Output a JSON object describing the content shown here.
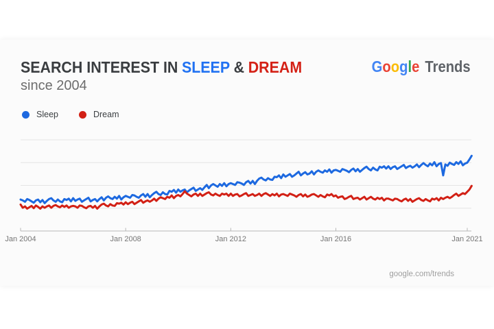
{
  "header": {
    "title_prefix": "SEARCH INTEREST IN",
    "keyword1": "SLEEP",
    "ampersand": "&",
    "keyword2": "DREAM",
    "subtitle": "since 2004",
    "title_color": "#3a3d40",
    "keyword1_color": "#2172f2",
    "keyword2_color": "#d42116"
  },
  "brand": {
    "letters": [
      {
        "ch": "G",
        "color": "#4285F4"
      },
      {
        "ch": "o",
        "color": "#EA4335"
      },
      {
        "ch": "o",
        "color": "#FBBC05"
      },
      {
        "ch": "g",
        "color": "#4285F4"
      },
      {
        "ch": "l",
        "color": "#34A853"
      },
      {
        "ch": "e",
        "color": "#EA4335"
      }
    ],
    "suffix": "Trends",
    "suffix_color": "#5f6368"
  },
  "legend": [
    {
      "label": "Sleep",
      "color": "#1d69e0"
    },
    {
      "label": "Dream",
      "color": "#d22015"
    }
  ],
  "footer": {
    "text": "google.com/trends"
  },
  "chart_data": {
    "type": "line",
    "title": "Search interest in Sleep & Dream since 2004",
    "xlabel": "",
    "ylabel": "",
    "ylim": [
      0,
      100
    ],
    "grid": true,
    "gridline_values": [
      25,
      50,
      75,
      100
    ],
    "legend_position": "top-left",
    "x_unit": "months since Jan 2004",
    "x_step_months": 1,
    "x_tick_labels": [
      "Jan 2004",
      "Jan 2008",
      "Jan 2012",
      "Jan 2016",
      "Jan 2021"
    ],
    "x_tick_months": [
      0,
      48,
      96,
      144,
      204
    ],
    "series": [
      {
        "name": "Sleep",
        "color": "#1d69e0",
        "values": [
          34.5,
          33.5,
          32,
          35,
          34,
          32.5,
          31,
          33.5,
          34.5,
          31.5,
          34,
          30.5,
          33,
          35,
          36,
          33.5,
          32,
          34.5,
          32.5,
          31.5,
          35,
          34,
          35.5,
          32.5,
          36,
          33,
          34.5,
          35.5,
          32,
          33.5,
          35,
          36.5,
          32.5,
          34,
          35,
          32.5,
          35,
          37,
          33.5,
          36.5,
          38,
          36,
          35,
          37.5,
          35.5,
          38.5,
          34.5,
          37,
          38.5,
          37.5,
          36.5,
          39.5,
          39,
          37.5,
          36.5,
          39,
          40.5,
          37.5,
          40.5,
          37,
          39.5,
          41.5,
          43,
          40.5,
          39.5,
          42.5,
          40.5,
          40,
          44,
          43,
          45,
          42,
          45.5,
          43,
          44.5,
          45.5,
          42.5,
          44.5,
          46,
          47.5,
          44,
          45.5,
          47,
          45,
          48,
          50.5,
          47,
          50,
          51.5,
          50,
          48.5,
          51.5,
          49.5,
          52.5,
          49,
          51.5,
          52.5,
          51.5,
          50.5,
          53.5,
          53,
          52,
          50.5,
          53.5,
          55,
          52,
          55,
          51.5,
          55,
          57.5,
          58.5,
          56.5,
          55.5,
          58,
          56.5,
          56,
          59.5,
          59,
          61,
          58,
          62,
          59.5,
          61,
          62.5,
          59.5,
          61,
          63,
          65,
          61,
          63,
          64.5,
          62,
          63,
          65.5,
          62,
          65,
          66.5,
          65,
          64,
          66.5,
          65,
          67.5,
          64,
          66.5,
          67,
          66,
          65,
          68,
          67,
          66,
          64.5,
          67,
          68.5,
          65.5,
          68,
          65,
          67,
          69,
          70.5,
          68,
          66.5,
          69.5,
          67.5,
          66.5,
          70.5,
          69.5,
          71,
          68.5,
          71,
          68,
          70,
          71,
          68,
          69.5,
          71,
          72.5,
          69,
          70.5,
          71.5,
          69.5,
          71,
          73,
          70,
          72.5,
          74.5,
          72.5,
          71,
          74,
          72,
          75.5,
          71,
          73.5,
          74.5,
          61,
          73,
          71.5,
          75,
          73.5,
          72.5,
          75.5,
          73.5,
          76.5,
          72,
          74,
          75,
          78.5,
          82.5
        ]
      },
      {
        "name": "Dream",
        "color": "#d22015",
        "values": [
          29,
          25.5,
          27,
          24.5,
          26,
          27.5,
          25,
          28,
          26.5,
          24.5,
          27,
          25.5,
          27,
          28,
          25.5,
          27.5,
          28.5,
          27,
          26,
          28,
          26.5,
          28,
          25.5,
          27,
          27.5,
          27,
          25.5,
          28,
          27.5,
          26,
          25,
          27,
          27.5,
          25.5,
          27.5,
          24.5,
          27,
          29,
          30,
          28,
          27,
          29.5,
          28,
          27.5,
          30.5,
          30,
          31,
          29,
          31.5,
          29.5,
          31,
          32,
          29.5,
          31,
          32.5,
          34,
          31,
          32.5,
          33.5,
          32,
          33.5,
          35.5,
          33,
          35.5,
          37,
          36,
          35,
          37.5,
          36.5,
          39,
          36,
          38.5,
          39.5,
          38,
          40.5,
          43.5,
          41,
          39.5,
          38,
          40,
          41,
          38.5,
          41,
          38.5,
          40,
          41.5,
          42.5,
          40,
          39,
          41,
          39.5,
          38.5,
          41,
          40,
          41,
          38.5,
          41,
          38.5,
          40,
          40.5,
          38,
          39,
          40.5,
          41.5,
          38.5,
          39.5,
          40.5,
          38.5,
          39.5,
          41,
          38.5,
          40.5,
          41.5,
          40,
          38.5,
          40.5,
          39,
          41,
          38,
          40,
          40.5,
          39.5,
          38.5,
          41,
          40,
          39,
          37.5,
          39.5,
          40.5,
          38,
          40,
          37.5,
          38.5,
          40,
          40.5,
          39,
          37.5,
          39.5,
          38,
          37,
          40,
          39,
          40.5,
          38,
          39,
          36.5,
          37.5,
          38,
          35,
          36,
          37.5,
          38.5,
          35,
          36,
          36.5,
          34.5,
          36,
          37.5,
          34.5,
          36,
          37.5,
          35.5,
          34.5,
          36.5,
          35,
          36.5,
          33.5,
          35.5,
          35.5,
          34.5,
          33.5,
          35.5,
          35,
          33.5,
          32.5,
          34.5,
          35.5,
          33,
          35,
          32,
          33.5,
          35,
          36,
          34,
          33,
          35,
          33.5,
          32.5,
          35.5,
          34.5,
          36,
          33.5,
          36.5,
          35,
          36.5,
          37.5,
          36,
          37.5,
          39.5,
          41,
          38.5,
          40,
          41.5,
          40.5,
          43,
          45.5,
          49.5
        ]
      }
    ]
  }
}
